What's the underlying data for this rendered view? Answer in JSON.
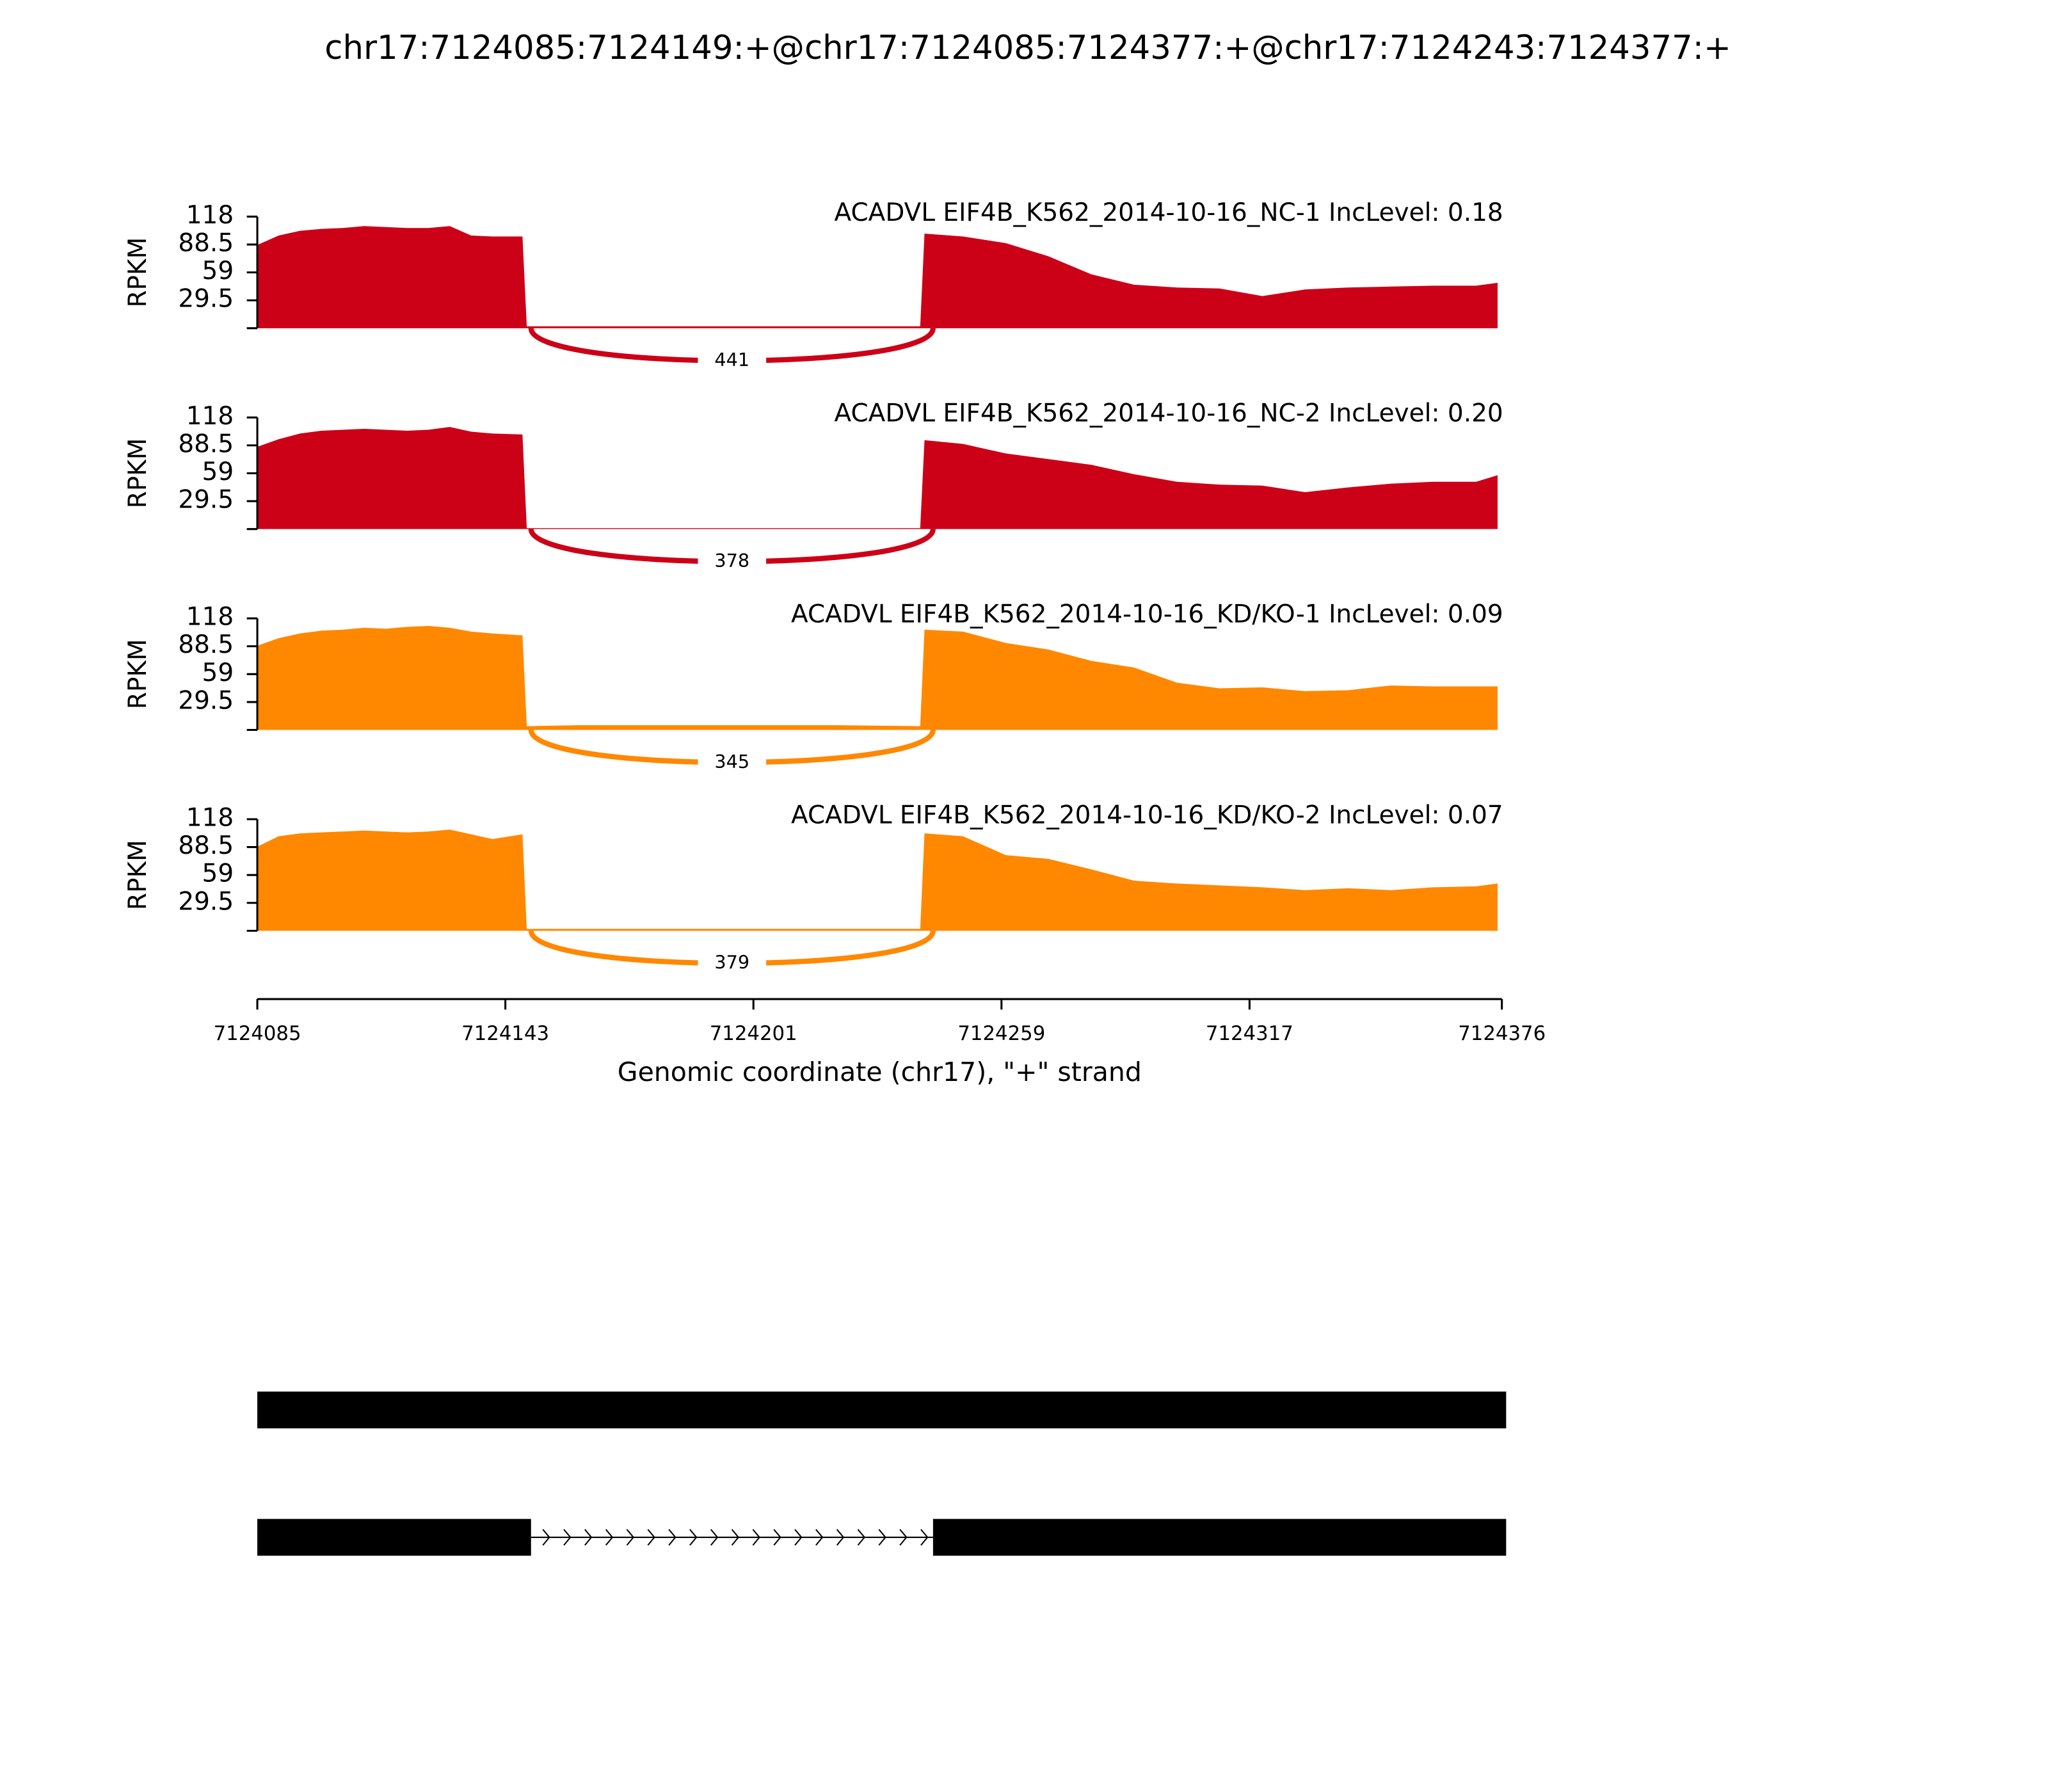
{
  "title": "chr17:7124085:7124149:+@chr17:7124085:7124377:+@chr17:7124243:7124377:+",
  "chart_data": [
    {
      "type": "sashimi",
      "title": "ACADVL EIF4B_K562_2014-10-16_NC-1 IncLevel: 0.18",
      "color": "#cc0017",
      "ylabel": "RPKM",
      "xlim": [
        7124085,
        7124376
      ],
      "ylim": [
        0,
        118
      ],
      "yticks": [
        29.5,
        59,
        88.5,
        118
      ],
      "x": [
        7124085,
        7124090,
        7124095,
        7124100,
        7124105,
        7124110,
        7124115,
        7124120,
        7124125,
        7124130,
        7124135,
        7124140,
        7124147,
        7124148,
        7124160,
        7124180,
        7124200,
        7124220,
        7124240,
        7124241,
        7124250,
        7124260,
        7124270,
        7124280,
        7124290,
        7124300,
        7124310,
        7124320,
        7124330,
        7124340,
        7124350,
        7124360,
        7124370,
        7124375
      ],
      "values": [
        88,
        98,
        103,
        105,
        106,
        108,
        107,
        106,
        106,
        108,
        98,
        97,
        97,
        2,
        2,
        2,
        2,
        2,
        2,
        100,
        97,
        90,
        76,
        57,
        46,
        43,
        42,
        34,
        41,
        43,
        44,
        45,
        45,
        48
      ],
      "junction": {
        "start": 7124149,
        "end": 7124243,
        "count": 441
      }
    },
    {
      "type": "sashimi",
      "title": "ACADVL EIF4B_K562_2014-10-16_NC-2 IncLevel: 0.20",
      "color": "#cc0017",
      "ylabel": "RPKM",
      "xlim": [
        7124085,
        7124376
      ],
      "ylim": [
        0,
        118
      ],
      "yticks": [
        29.5,
        59,
        88.5,
        118
      ],
      "x": [
        7124085,
        7124090,
        7124095,
        7124100,
        7124105,
        7124110,
        7124115,
        7124120,
        7124125,
        7124130,
        7124135,
        7124140,
        7124147,
        7124148,
        7124160,
        7124180,
        7124200,
        7124220,
        7124240,
        7124241,
        7124250,
        7124260,
        7124270,
        7124280,
        7124290,
        7124300,
        7124310,
        7124320,
        7124330,
        7124340,
        7124350,
        7124360,
        7124370,
        7124375
      ],
      "values": [
        87,
        95,
        101,
        104,
        105,
        106,
        105,
        104,
        105,
        108,
        103,
        101,
        100,
        1,
        1,
        1,
        1,
        1,
        1,
        94,
        90,
        80,
        74,
        68,
        58,
        50,
        47,
        46,
        39,
        44,
        48,
        50,
        50,
        57
      ],
      "junction": {
        "start": 7124149,
        "end": 7124243,
        "count": 378
      }
    },
    {
      "type": "sashimi",
      "title": "ACADVL EIF4B_K562_2014-10-16_KD/KO-1 IncLevel: 0.09",
      "color": "#ff8800",
      "ylabel": "RPKM",
      "xlim": [
        7124085,
        7124376
      ],
      "ylim": [
        0,
        118
      ],
      "yticks": [
        29.5,
        59,
        88.5,
        118
      ],
      "x": [
        7124085,
        7124090,
        7124095,
        7124100,
        7124105,
        7124110,
        7124115,
        7124120,
        7124125,
        7124130,
        7124135,
        7124140,
        7124147,
        7124148,
        7124160,
        7124180,
        7124200,
        7124220,
        7124240,
        7124241,
        7124250,
        7124260,
        7124270,
        7124280,
        7124290,
        7124300,
        7124310,
        7124320,
        7124330,
        7124340,
        7124350,
        7124360,
        7124370,
        7124375
      ],
      "values": [
        89,
        97,
        102,
        105,
        106,
        108,
        107,
        109,
        110,
        108,
        104,
        102,
        100,
        4,
        5,
        5,
        5,
        5,
        4,
        106,
        104,
        92,
        85,
        73,
        66,
        50,
        44,
        45,
        41,
        42,
        47,
        46,
        46,
        46
      ],
      "junction": {
        "start": 7124149,
        "end": 7124243,
        "count": 345
      }
    },
    {
      "type": "sashimi",
      "title": "ACADVL EIF4B_K562_2014-10-16_KD/KO-2 IncLevel: 0.07",
      "color": "#ff8800",
      "ylabel": "RPKM",
      "xlim": [
        7124085,
        7124376
      ],
      "ylim": [
        0,
        118
      ],
      "yticks": [
        29.5,
        59,
        88.5,
        118
      ],
      "x": [
        7124085,
        7124090,
        7124095,
        7124100,
        7124105,
        7124110,
        7124115,
        7124120,
        7124125,
        7124130,
        7124135,
        7124140,
        7124147,
        7124148,
        7124160,
        7124180,
        7124200,
        7124220,
        7124240,
        7124241,
        7124250,
        7124260,
        7124270,
        7124280,
        7124290,
        7124300,
        7124310,
        7124320,
        7124330,
        7124340,
        7124350,
        7124360,
        7124370,
        7124375
      ],
      "values": [
        89,
        100,
        103,
        104,
        105,
        106,
        105,
        104,
        105,
        107,
        102,
        97,
        102,
        2,
        2,
        2,
        2,
        2,
        2,
        103,
        100,
        80,
        76,
        65,
        53,
        50,
        48,
        46,
        43,
        45,
        43,
        46,
        47,
        50
      ],
      "junction": {
        "start": 7124149,
        "end": 7124243,
        "count": 379
      },
      "xticks": [
        7124085,
        7124143,
        7124201,
        7124259,
        7124317,
        7124376
      ],
      "xlabel": "Genomic coordinate (chr17), \"+\" strand"
    }
  ],
  "gene_model": [
    [
      [
        7124085,
        7124377
      ]
    ],
    [
      [
        7124085,
        7124149
      ],
      [
        7124243,
        7124377
      ]
    ]
  ]
}
